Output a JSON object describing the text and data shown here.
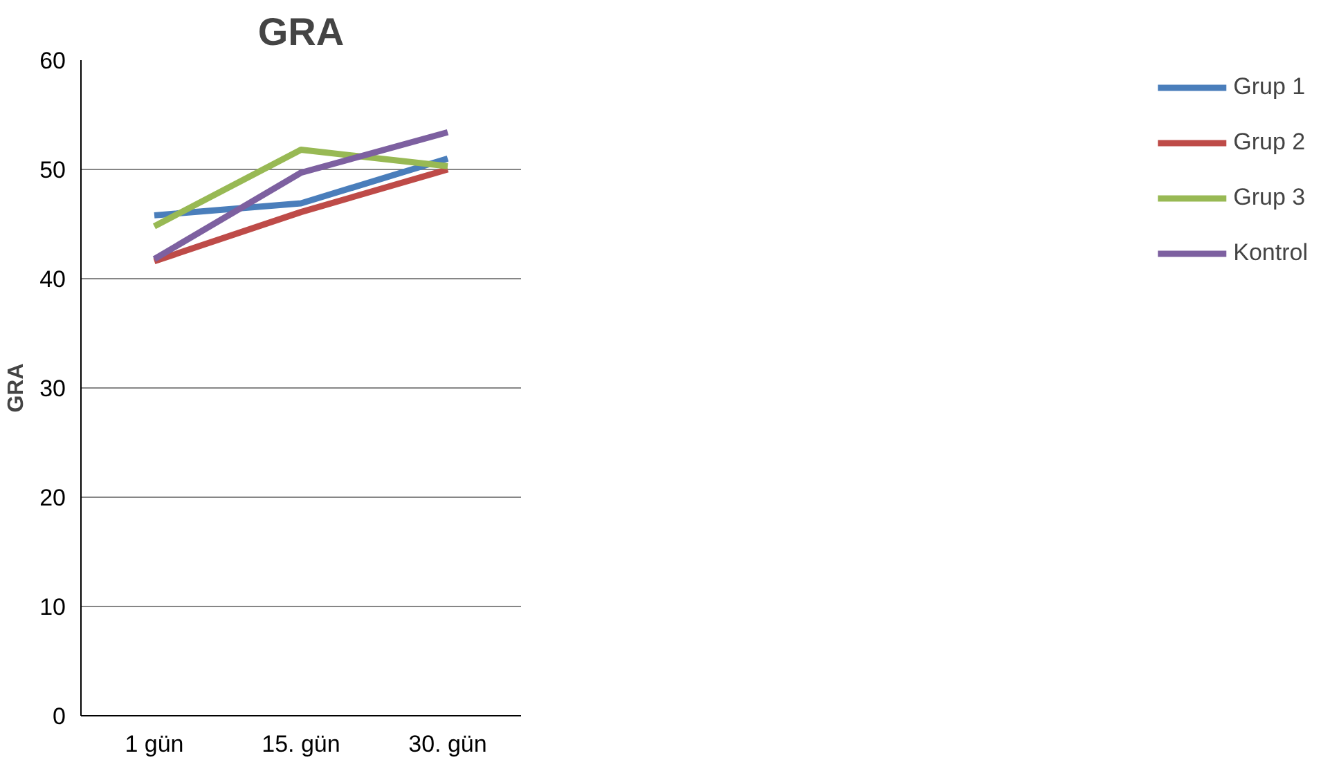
{
  "chart_data": {
    "type": "line",
    "title": "GRA",
    "ylabel": "GRA",
    "categories": [
      "1 gün",
      "15. gün",
      "30. gün"
    ],
    "series": [
      {
        "name": "Grup 1",
        "color": "#4a7ebb",
        "values": [
          45.8,
          46.9,
          51.0
        ]
      },
      {
        "name": "Grup 2",
        "color": "#be4b48",
        "values": [
          41.6,
          46.1,
          50.0
        ]
      },
      {
        "name": "Grup 3",
        "color": "#98b954",
        "values": [
          44.8,
          51.8,
          50.3
        ]
      },
      {
        "name": "Kontrol",
        "color": "#7d60a0",
        "values": [
          41.8,
          49.7,
          53.4
        ]
      }
    ],
    "ylim": [
      0,
      60
    ],
    "yticks": [
      0,
      10,
      20,
      30,
      40,
      50,
      60
    ],
    "grid": "y",
    "legend": "right",
    "marker": "none",
    "line_style": "solid"
  }
}
